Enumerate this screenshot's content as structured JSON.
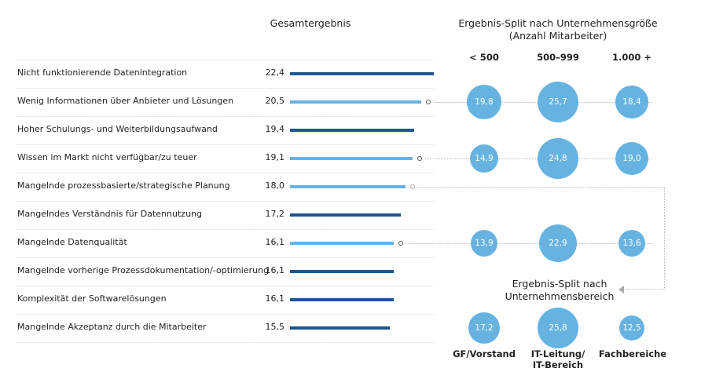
{
  "titles": {
    "overall": "Gesamtergebnis",
    "size_split_line1": "Ergebnis-Split nach Unternehmensgröße",
    "size_split_line2": "(Anzahl Mitarbeiter)",
    "area_split_line1": "Ergebnis-Split nach",
    "area_split_line2": "Unternehmensbereich"
  },
  "size_columns": [
    "< 500",
    "500–999",
    "1.000 +"
  ],
  "area_columns": [
    "GF/Vorstand",
    "IT-Leitung/\nIT-Bereich",
    "Fachbereiche"
  ],
  "colors": {
    "dark_bar": "#1f5591",
    "light_bar": "#66b3e2",
    "bubble": "#66b3e2"
  },
  "chart_data": {
    "type": "bar",
    "orientation": "horizontal",
    "title": "Gesamtergebnis",
    "categories": [
      "Nicht funktionierende Datenintegration",
      "Wenig Informationen über Anbieter und Lösungen",
      "Hoher Schulungs- und Weiterbildungsaufwand",
      "Wissen im Markt nicht verfügbar/zu teuer",
      "Mangelnde prozessbasierte/strategische Planung",
      "Mangelndes Verständnis für Datennutzung",
      "Mangelnde Datenqualität",
      "Mangelnde vorherige Prozessdokumentation/-optimierung",
      "Komplexität der Softwarelösungen",
      "Mangelnde Akzeptanz durch die Mitarbeiter"
    ],
    "values": [
      22.4,
      20.5,
      19.4,
      19.1,
      18.0,
      17.2,
      16.1,
      16.1,
      16.1,
      15.5
    ],
    "value_labels": [
      "22,4",
      "20,5",
      "19,4",
      "19,1",
      "18,0",
      "17,2",
      "16,1",
      "16,1",
      "16,1",
      "15,5"
    ],
    "highlighted": [
      false,
      true,
      false,
      true,
      true,
      false,
      true,
      false,
      false,
      false
    ],
    "size_split": [
      {
        "category": "Wenig Informationen über Anbieter und Lösungen",
        "values": [
          19.8,
          25.7,
          18.4
        ],
        "labels": [
          "19,8",
          "25,7",
          "18,4"
        ]
      },
      {
        "category": "Wissen im Markt nicht verfügbar/zu teuer",
        "values": [
          14.9,
          24.8,
          19.0
        ],
        "labels": [
          "14,9",
          "24,8",
          "19,0"
        ]
      },
      {
        "category": "Mangelnde Datenqualität",
        "values": [
          13.9,
          22.9,
          13.6
        ],
        "labels": [
          "13,9",
          "22,9",
          "13,6"
        ]
      }
    ],
    "area_split": [
      {
        "category": "Mangelnde prozessbasierte/strategische Planung",
        "values": [
          17.2,
          25.8,
          12.5
        ],
        "labels": [
          "17,2",
          "25,8",
          "12,5"
        ]
      }
    ]
  }
}
